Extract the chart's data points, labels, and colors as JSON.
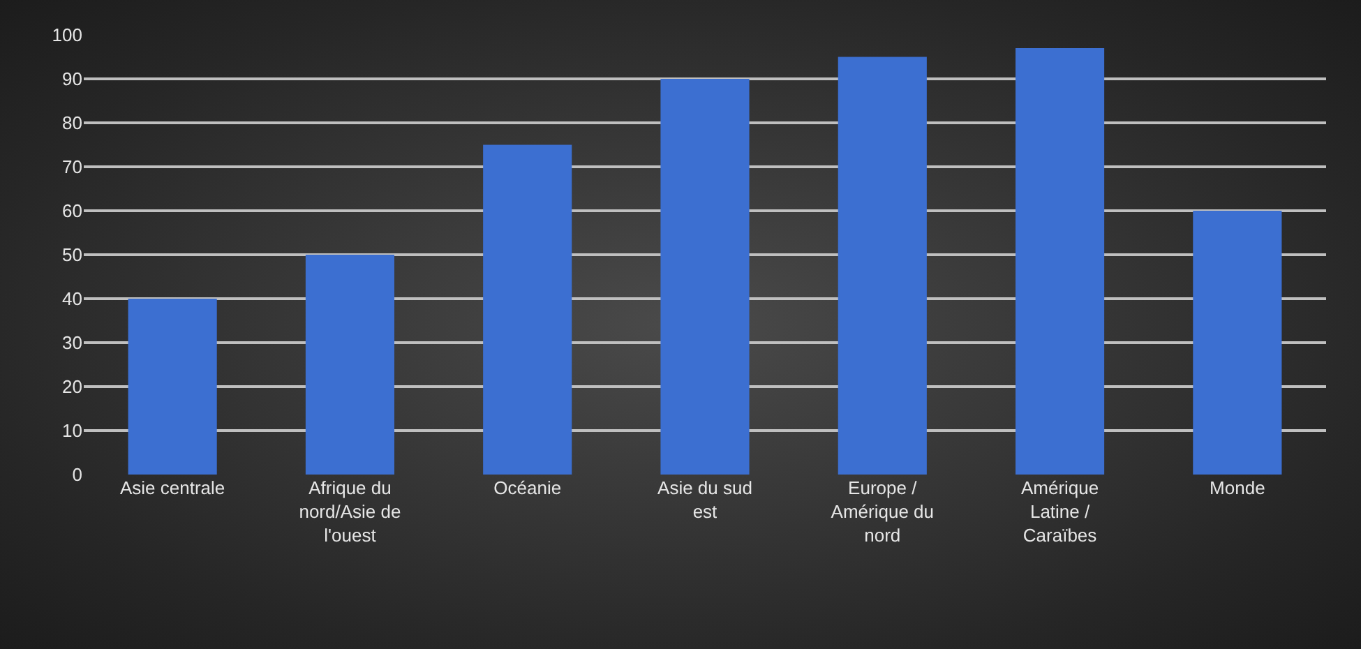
{
  "chart_data": {
    "type": "bar",
    "categories": [
      "Asie centrale",
      "Afrique du nord/Asie de l'ouest",
      "Océanie",
      "Asie du sud est",
      "Europe / Amérique du nord",
      "Amérique Latine / Caraïbes",
      "Monde"
    ],
    "values": [
      40,
      50,
      75,
      90,
      95,
      97,
      60
    ],
    "color": "#3c6fd1",
    "ylim": [
      0,
      100
    ],
    "yticks": [
      0,
      10,
      20,
      30,
      40,
      50,
      60,
      70,
      80,
      90,
      100
    ],
    "grid": "y",
    "legend": false
  }
}
